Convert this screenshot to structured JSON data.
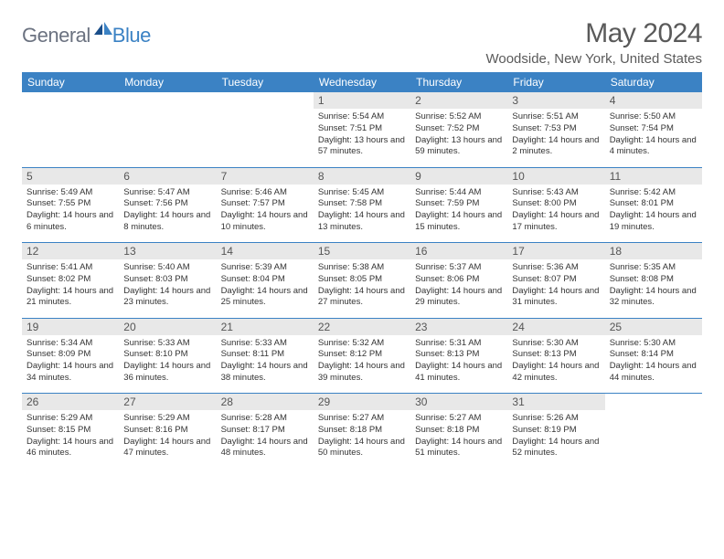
{
  "logo": {
    "general": "General",
    "blue": "Blue"
  },
  "title": "May 2024",
  "location": "Woodside, New York, United States",
  "colors": {
    "header_bg": "#3b82c4",
    "header_text": "#ffffff",
    "daynum_bg": "#e8e8e8",
    "text": "#333333",
    "divider": "#3b82c4"
  },
  "day_names": [
    "Sunday",
    "Monday",
    "Tuesday",
    "Wednesday",
    "Thursday",
    "Friday",
    "Saturday"
  ],
  "weeks": [
    [
      null,
      null,
      null,
      {
        "n": "1",
        "sr": "5:54 AM",
        "ss": "7:51 PM",
        "dl": "13 hours and 57 minutes."
      },
      {
        "n": "2",
        "sr": "5:52 AM",
        "ss": "7:52 PM",
        "dl": "13 hours and 59 minutes."
      },
      {
        "n": "3",
        "sr": "5:51 AM",
        "ss": "7:53 PM",
        "dl": "14 hours and 2 minutes."
      },
      {
        "n": "4",
        "sr": "5:50 AM",
        "ss": "7:54 PM",
        "dl": "14 hours and 4 minutes."
      }
    ],
    [
      {
        "n": "5",
        "sr": "5:49 AM",
        "ss": "7:55 PM",
        "dl": "14 hours and 6 minutes."
      },
      {
        "n": "6",
        "sr": "5:47 AM",
        "ss": "7:56 PM",
        "dl": "14 hours and 8 minutes."
      },
      {
        "n": "7",
        "sr": "5:46 AM",
        "ss": "7:57 PM",
        "dl": "14 hours and 10 minutes."
      },
      {
        "n": "8",
        "sr": "5:45 AM",
        "ss": "7:58 PM",
        "dl": "14 hours and 13 minutes."
      },
      {
        "n": "9",
        "sr": "5:44 AM",
        "ss": "7:59 PM",
        "dl": "14 hours and 15 minutes."
      },
      {
        "n": "10",
        "sr": "5:43 AM",
        "ss": "8:00 PM",
        "dl": "14 hours and 17 minutes."
      },
      {
        "n": "11",
        "sr": "5:42 AM",
        "ss": "8:01 PM",
        "dl": "14 hours and 19 minutes."
      }
    ],
    [
      {
        "n": "12",
        "sr": "5:41 AM",
        "ss": "8:02 PM",
        "dl": "14 hours and 21 minutes."
      },
      {
        "n": "13",
        "sr": "5:40 AM",
        "ss": "8:03 PM",
        "dl": "14 hours and 23 minutes."
      },
      {
        "n": "14",
        "sr": "5:39 AM",
        "ss": "8:04 PM",
        "dl": "14 hours and 25 minutes."
      },
      {
        "n": "15",
        "sr": "5:38 AM",
        "ss": "8:05 PM",
        "dl": "14 hours and 27 minutes."
      },
      {
        "n": "16",
        "sr": "5:37 AM",
        "ss": "8:06 PM",
        "dl": "14 hours and 29 minutes."
      },
      {
        "n": "17",
        "sr": "5:36 AM",
        "ss": "8:07 PM",
        "dl": "14 hours and 31 minutes."
      },
      {
        "n": "18",
        "sr": "5:35 AM",
        "ss": "8:08 PM",
        "dl": "14 hours and 32 minutes."
      }
    ],
    [
      {
        "n": "19",
        "sr": "5:34 AM",
        "ss": "8:09 PM",
        "dl": "14 hours and 34 minutes."
      },
      {
        "n": "20",
        "sr": "5:33 AM",
        "ss": "8:10 PM",
        "dl": "14 hours and 36 minutes."
      },
      {
        "n": "21",
        "sr": "5:33 AM",
        "ss": "8:11 PM",
        "dl": "14 hours and 38 minutes."
      },
      {
        "n": "22",
        "sr": "5:32 AM",
        "ss": "8:12 PM",
        "dl": "14 hours and 39 minutes."
      },
      {
        "n": "23",
        "sr": "5:31 AM",
        "ss": "8:13 PM",
        "dl": "14 hours and 41 minutes."
      },
      {
        "n": "24",
        "sr": "5:30 AM",
        "ss": "8:13 PM",
        "dl": "14 hours and 42 minutes."
      },
      {
        "n": "25",
        "sr": "5:30 AM",
        "ss": "8:14 PM",
        "dl": "14 hours and 44 minutes."
      }
    ],
    [
      {
        "n": "26",
        "sr": "5:29 AM",
        "ss": "8:15 PM",
        "dl": "14 hours and 46 minutes."
      },
      {
        "n": "27",
        "sr": "5:29 AM",
        "ss": "8:16 PM",
        "dl": "14 hours and 47 minutes."
      },
      {
        "n": "28",
        "sr": "5:28 AM",
        "ss": "8:17 PM",
        "dl": "14 hours and 48 minutes."
      },
      {
        "n": "29",
        "sr": "5:27 AM",
        "ss": "8:18 PM",
        "dl": "14 hours and 50 minutes."
      },
      {
        "n": "30",
        "sr": "5:27 AM",
        "ss": "8:18 PM",
        "dl": "14 hours and 51 minutes."
      },
      {
        "n": "31",
        "sr": "5:26 AM",
        "ss": "8:19 PM",
        "dl": "14 hours and 52 minutes."
      },
      null
    ]
  ],
  "labels": {
    "sunrise": "Sunrise:",
    "sunset": "Sunset:",
    "daylight": "Daylight:"
  }
}
